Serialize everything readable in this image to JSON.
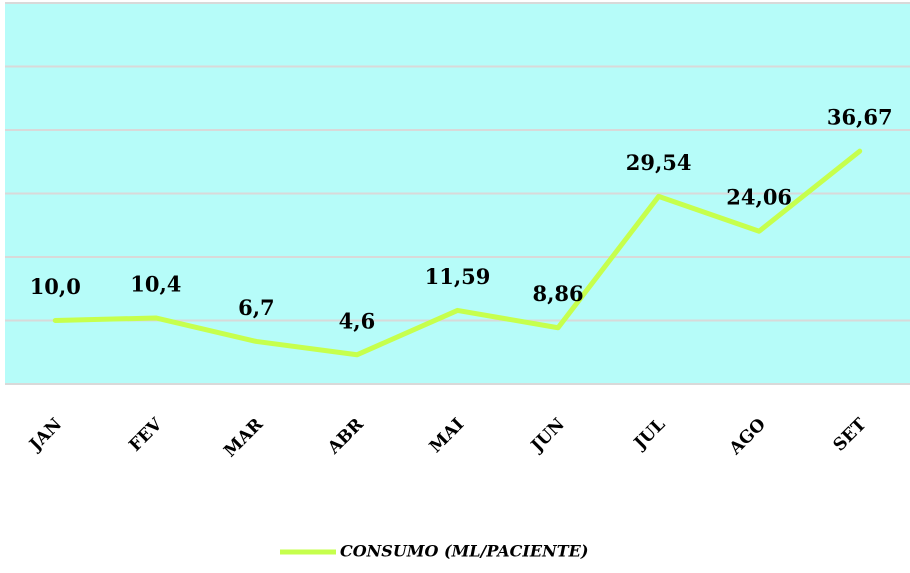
{
  "chart_data": {
    "type": "line",
    "categories": [
      "JAN",
      "FEV",
      "MAR",
      "ABR",
      "MAI",
      "JUN",
      "JUL",
      "AGO",
      "SET"
    ],
    "series": [
      {
        "name": "CONSUMO (ML/PACIENTE)",
        "color": "#c6ff4d",
        "values": [
          10.0,
          10.4,
          6.7,
          4.6,
          11.59,
          8.86,
          29.54,
          24.06,
          36.67
        ],
        "value_labels": [
          "10,0",
          "10,4",
          "6,7",
          "4,6",
          "11,59",
          "8,86",
          "29,54",
          "24,06",
          "36,67"
        ]
      }
    ],
    "ylim": [
      0,
      60
    ],
    "yticks": [
      0,
      10,
      20,
      30,
      40,
      50,
      60
    ],
    "grid": true,
    "background": "#b6fcf9",
    "legend": "bottom"
  }
}
